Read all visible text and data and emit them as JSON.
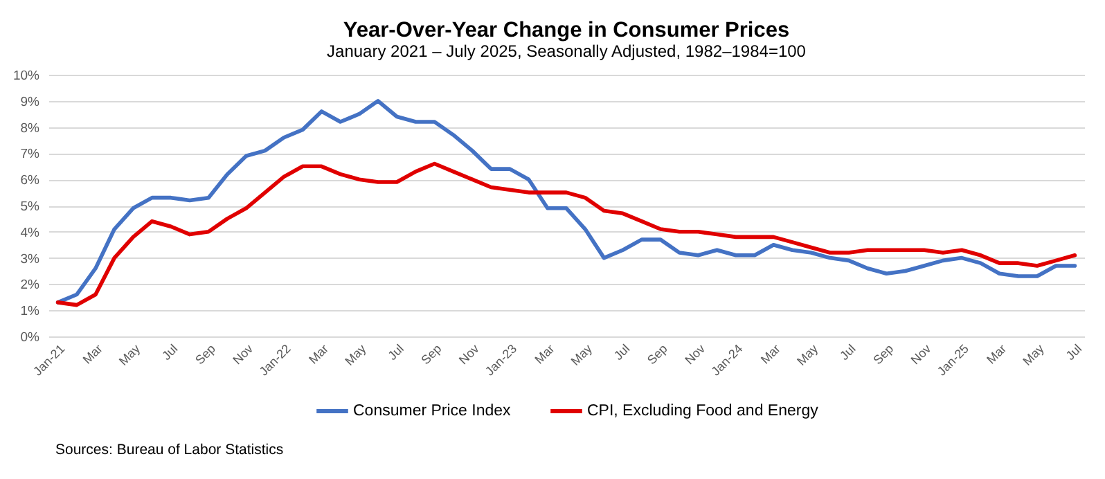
{
  "chart_data": {
    "type": "line",
    "title": "Year-Over-Year Change in Consumer Prices",
    "subtitle": "January 2021 – July 2025, Seasonally Adjusted, 1982–1984=100",
    "categories": [
      "Jan-21",
      null,
      "Mar",
      null,
      "May",
      null,
      "Jul",
      null,
      "Sep",
      null,
      "Nov",
      null,
      "Jan-22",
      null,
      "Mar",
      null,
      "May",
      null,
      "Jul",
      null,
      "Sep",
      null,
      "Nov",
      null,
      "Jan-23",
      null,
      "Mar",
      null,
      "May",
      null,
      "Jul",
      null,
      "Sep",
      null,
      "Nov",
      null,
      "Jan-24",
      null,
      "Mar",
      null,
      "May",
      null,
      "Jul",
      null,
      "Sep",
      null,
      "Nov",
      null,
      "Jan-25",
      null,
      "Mar",
      null,
      "May",
      null,
      "Jul"
    ],
    "series": [
      {
        "name": "Consumer Price Index",
        "color": "#4472c4",
        "values": [
          1.3,
          1.6,
          2.6,
          4.1,
          4.9,
          5.3,
          5.3,
          5.2,
          5.3,
          6.2,
          6.9,
          7.1,
          7.6,
          7.9,
          8.6,
          8.2,
          8.5,
          9.0,
          8.4,
          8.2,
          8.2,
          7.7,
          7.1,
          6.4,
          6.4,
          6.0,
          4.9,
          4.9,
          4.1,
          3.0,
          3.3,
          3.7,
          3.7,
          3.2,
          3.1,
          3.3,
          3.1,
          3.1,
          3.5,
          3.3,
          3.2,
          3.0,
          2.9,
          2.6,
          2.4,
          2.5,
          2.7,
          2.9,
          3.0,
          2.8,
          2.4,
          2.3,
          2.3,
          2.7,
          2.7
        ]
      },
      {
        "name": "CPI, Excluding Food and Energy",
        "color": "#e00000",
        "values": [
          1.3,
          1.2,
          1.6,
          3.0,
          3.8,
          4.4,
          4.2,
          3.9,
          4.0,
          4.5,
          4.9,
          5.5,
          6.1,
          6.5,
          6.5,
          6.2,
          6.0,
          5.9,
          5.9,
          6.3,
          6.6,
          6.3,
          6.0,
          5.7,
          5.6,
          5.5,
          5.5,
          5.5,
          5.3,
          4.8,
          4.7,
          4.4,
          4.1,
          4.0,
          4.0,
          3.9,
          3.8,
          3.8,
          3.8,
          3.6,
          3.4,
          3.2,
          3.2,
          3.3,
          3.3,
          3.3,
          3.3,
          3.2,
          3.3,
          3.1,
          2.8,
          2.8,
          2.7,
          2.9,
          3.1
        ]
      }
    ],
    "ylim": [
      0,
      10
    ],
    "yticks": [
      {
        "value": 0,
        "label": "0%"
      },
      {
        "value": 1,
        "label": "1%"
      },
      {
        "value": 2,
        "label": "2%"
      },
      {
        "value": 3,
        "label": "3%"
      },
      {
        "value": 4,
        "label": "4%"
      },
      {
        "value": 5,
        "label": "5%"
      },
      {
        "value": 6,
        "label": "6%"
      },
      {
        "value": 7,
        "label": "7%"
      },
      {
        "value": 8,
        "label": "8%"
      },
      {
        "value": 9,
        "label": "9%"
      },
      {
        "value": 10,
        "label": "10%"
      }
    ],
    "grid": "y",
    "legend": "bottom",
    "line_style": "solid",
    "annotations": [
      "Sources: Bureau of Labor Statistics"
    ]
  }
}
